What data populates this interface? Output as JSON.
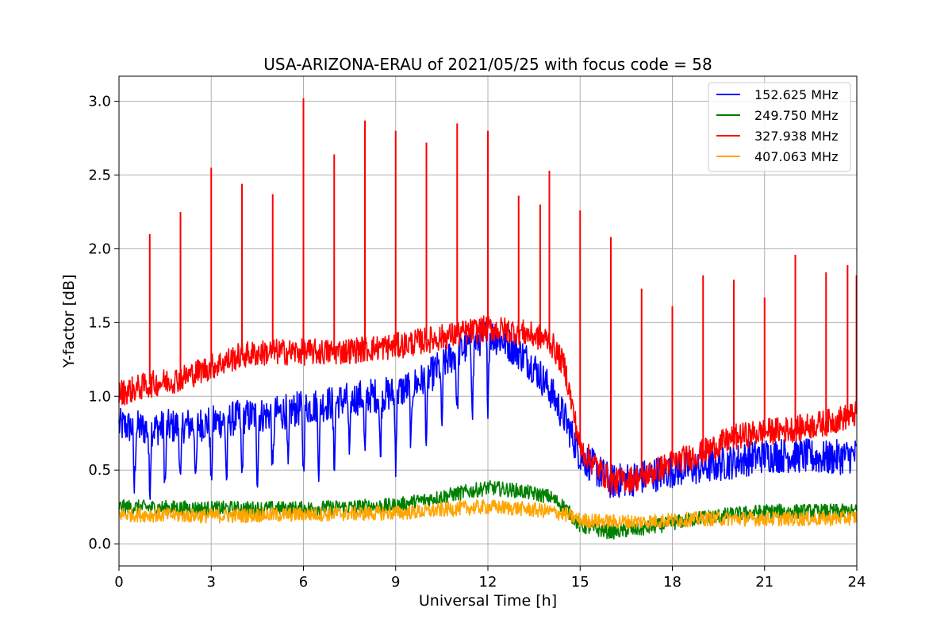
{
  "chart_data": {
    "type": "line",
    "title": "USA-ARIZONA-ERAU of 2021/05/25 with focus code = 58",
    "xlabel": "Universal Time [h]",
    "ylabel": "Y-factor [dB]",
    "xlim": [
      0,
      24
    ],
    "ylim": [
      -0.15,
      3.17
    ],
    "xticks": [
      0,
      3,
      6,
      9,
      12,
      15,
      18,
      21,
      24
    ],
    "yticks": [
      0.0,
      0.5,
      1.0,
      1.5,
      2.0,
      2.5,
      3.0
    ],
    "xtick_labels": [
      "0",
      "3",
      "6",
      "9",
      "12",
      "15",
      "18",
      "21",
      "24"
    ],
    "ytick_labels": [
      "0.0",
      "0.5",
      "1.0",
      "1.5",
      "2.0",
      "2.5",
      "3.0"
    ],
    "grid": true,
    "legend_position": "top-right",
    "series": [
      {
        "name": "152.625 MHz",
        "color": "#0000ff",
        "noise": 0.12,
        "x": [
          0,
          1,
          2,
          3,
          4,
          5,
          6,
          7,
          8,
          9,
          10,
          11,
          12,
          12.5,
          13,
          13.5,
          14,
          14.5,
          15,
          16,
          17,
          18,
          19,
          20,
          21,
          22,
          23,
          24
        ],
        "y": [
          0.8,
          0.78,
          0.8,
          0.82,
          0.86,
          0.88,
          0.92,
          0.96,
          1.0,
          1.02,
          1.12,
          1.3,
          1.42,
          1.38,
          1.3,
          1.2,
          1.05,
          0.85,
          0.6,
          0.42,
          0.45,
          0.5,
          0.52,
          0.56,
          0.6,
          0.6,
          0.58,
          0.6
        ],
        "dips": [
          0.5,
          1.0,
          1.5,
          2.0,
          2.5,
          3.0,
          3.5,
          4.0,
          4.5,
          5.0,
          5.5,
          6.0,
          6.5,
          7.0,
          7.5,
          8.0,
          8.5,
          9.0,
          9.5,
          10.0,
          10.5,
          11.0,
          11.5,
          12.0
        ]
      },
      {
        "name": "249.750 MHz",
        "color": "#008000",
        "noise": 0.05,
        "x": [
          0,
          3,
          6,
          9,
          10,
          11,
          12,
          13,
          14,
          14.5,
          15,
          16,
          17,
          18,
          19,
          20,
          21,
          22,
          23,
          24
        ],
        "y": [
          0.25,
          0.24,
          0.24,
          0.26,
          0.3,
          0.34,
          0.38,
          0.36,
          0.32,
          0.25,
          0.12,
          0.08,
          0.1,
          0.14,
          0.18,
          0.2,
          0.22,
          0.22,
          0.22,
          0.22
        ]
      },
      {
        "name": "327.938 MHz",
        "color": "#ff0000",
        "noise": 0.09,
        "x": [
          0,
          1,
          2,
          3,
          4,
          5,
          6,
          7,
          8,
          9,
          10,
          11,
          12,
          13,
          14,
          14.5,
          15,
          16,
          17,
          18,
          19,
          20,
          21,
          22,
          23,
          24
        ],
        "y": [
          1.02,
          1.08,
          1.12,
          1.2,
          1.28,
          1.3,
          1.3,
          1.3,
          1.32,
          1.34,
          1.38,
          1.42,
          1.46,
          1.44,
          1.38,
          1.2,
          0.65,
          0.42,
          0.45,
          0.55,
          0.62,
          0.72,
          0.76,
          0.78,
          0.82,
          0.88
        ],
        "spikes": [
          {
            "x": 1.0,
            "y": 2.1
          },
          {
            "x": 2.0,
            "y": 2.25
          },
          {
            "x": 3.0,
            "y": 2.55
          },
          {
            "x": 4.0,
            "y": 2.44
          },
          {
            "x": 5.0,
            "y": 2.37
          },
          {
            "x": 6.0,
            "y": 3.02
          },
          {
            "x": 7.0,
            "y": 2.64
          },
          {
            "x": 8.0,
            "y": 2.87
          },
          {
            "x": 9.0,
            "y": 2.8
          },
          {
            "x": 10.0,
            "y": 2.72
          },
          {
            "x": 11.0,
            "y": 2.85
          },
          {
            "x": 12.0,
            "y": 2.8
          },
          {
            "x": 13.0,
            "y": 2.36
          },
          {
            "x": 13.7,
            "y": 2.3
          },
          {
            "x": 14.0,
            "y": 2.53
          },
          {
            "x": 15.0,
            "y": 2.26
          },
          {
            "x": 16.0,
            "y": 2.08
          },
          {
            "x": 17.0,
            "y": 1.73
          },
          {
            "x": 18.0,
            "y": 1.61
          },
          {
            "x": 19.0,
            "y": 1.82
          },
          {
            "x": 20.0,
            "y": 1.79
          },
          {
            "x": 21.0,
            "y": 1.67
          },
          {
            "x": 22.0,
            "y": 1.96
          },
          {
            "x": 23.0,
            "y": 1.84
          },
          {
            "x": 23.7,
            "y": 1.89
          },
          {
            "x": 24.0,
            "y": 1.82
          }
        ]
      },
      {
        "name": "407.063 MHz",
        "color": "#ffa500",
        "noise": 0.05,
        "x": [
          0,
          3,
          6,
          9,
          10,
          11,
          12,
          13,
          14,
          14.5,
          15,
          16,
          17,
          18,
          19,
          20,
          21,
          22,
          23,
          24
        ],
        "y": [
          0.2,
          0.19,
          0.2,
          0.21,
          0.22,
          0.24,
          0.25,
          0.24,
          0.22,
          0.2,
          0.16,
          0.15,
          0.15,
          0.16,
          0.17,
          0.17,
          0.17,
          0.17,
          0.17,
          0.18
        ]
      }
    ]
  }
}
